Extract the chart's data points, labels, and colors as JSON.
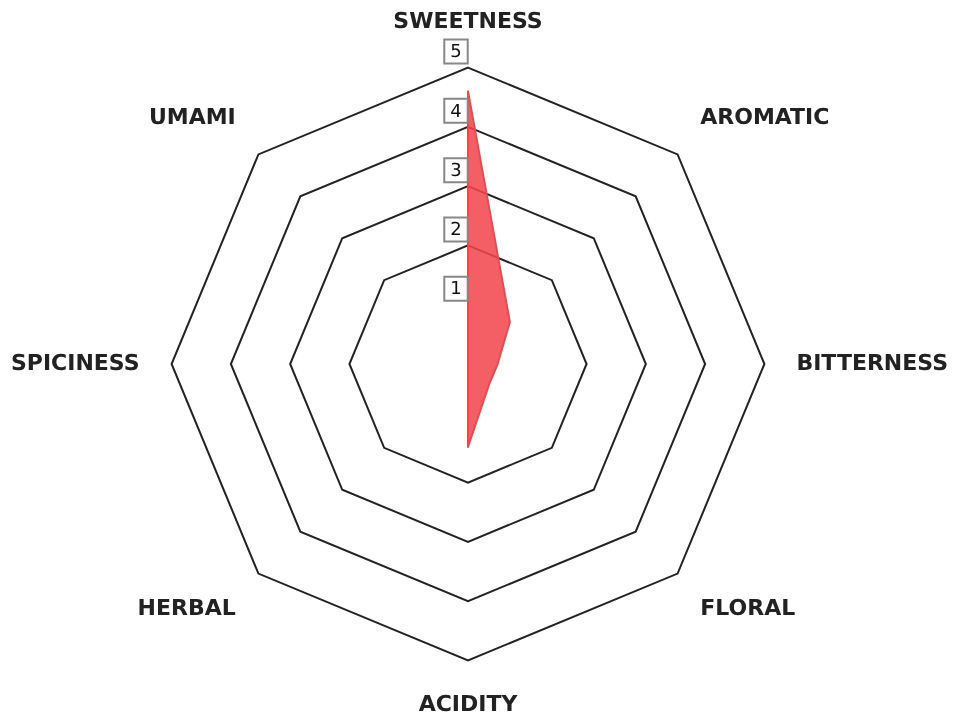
{
  "chart_data": {
    "type": "radar",
    "categories": [
      "SWEETNESS",
      "AROMATIC",
      "BITTERNESS",
      "FLORAL",
      "ACIDITY",
      "HERBAL",
      "SPICINESS",
      "UMAMI"
    ],
    "series": [
      {
        "color": "#f2464d",
        "values": [
          4.6,
          1.0,
          0.5,
          0.5,
          1.4,
          0,
          0,
          0
        ]
      }
    ],
    "ylim": [
      0,
      5
    ],
    "yticks": [
      1,
      2,
      3,
      4,
      5
    ],
    "grid": true,
    "legend": false,
    "marker": "none"
  }
}
